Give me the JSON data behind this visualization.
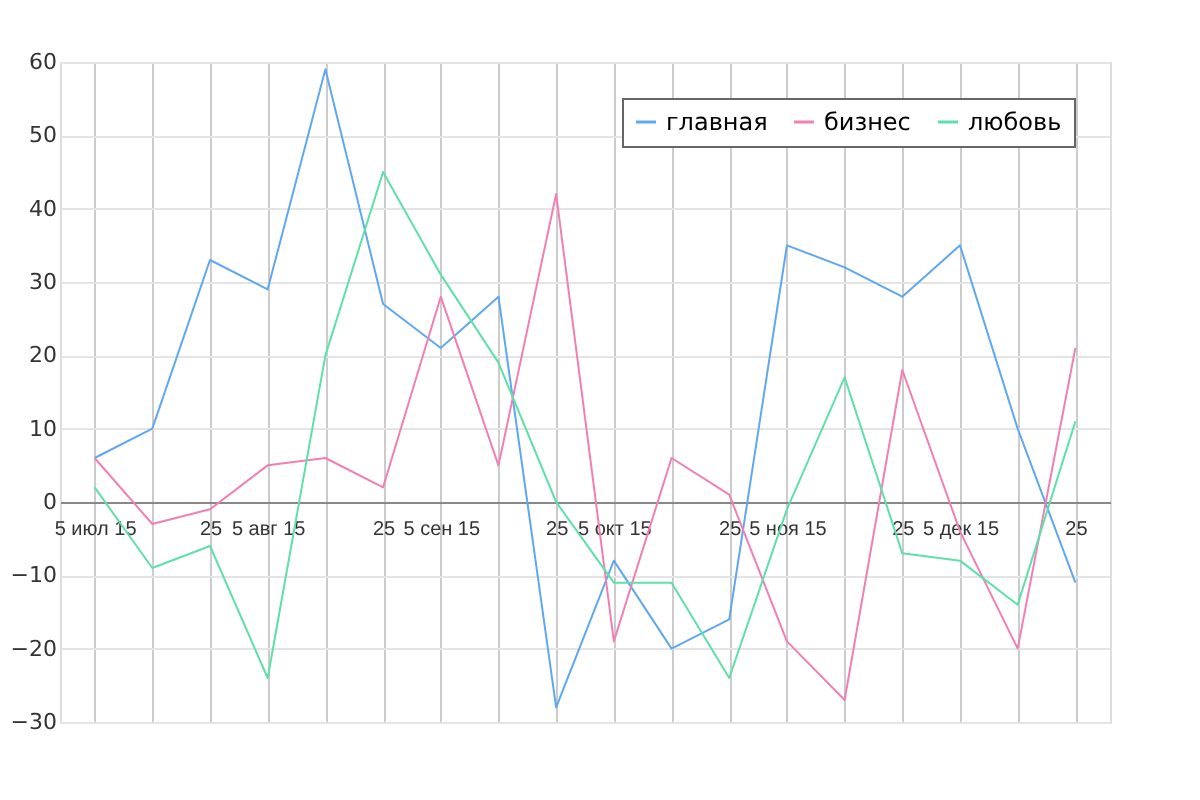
{
  "chart_data": {
    "type": "line",
    "categories": [
      "5 июл 15",
      null,
      "25",
      "5 авг 15",
      null,
      "25",
      "5 сен 15",
      null,
      "25",
      "5 окт 15",
      null,
      "25",
      "5 ноя 15",
      null,
      "25",
      "5 дек 15",
      null,
      "25"
    ],
    "series": [
      {
        "name": "главная",
        "color": "#5fa8f0",
        "values": [
          6,
          10,
          33,
          29,
          59,
          27,
          21,
          28,
          -28,
          -8,
          -20,
          -16,
          35,
          32,
          28,
          35,
          10,
          -11
        ]
      },
      {
        "name": "бизнес",
        "color": "#f07fb5",
        "values": [
          6,
          -3,
          -1,
          5,
          6,
          2,
          28,
          5,
          42,
          -19,
          6,
          1,
          -19,
          -27,
          18,
          -4,
          -20,
          21
        ]
      },
      {
        "name": "любовь",
        "color": "#5ee0a8",
        "values": [
          2,
          -9,
          -6,
          -24,
          20,
          45,
          31,
          19,
          0,
          -11,
          -11,
          -24,
          -1,
          17,
          -7,
          -8,
          -14,
          11
        ]
      }
    ],
    "ylim": [
      -30,
      60
    ],
    "yticks": [
      -30,
      -20,
      -10,
      0,
      10,
      20,
      30,
      40,
      50,
      60
    ],
    "grid": true,
    "legend": "top right",
    "marker": "none",
    "line_style": "solid"
  }
}
